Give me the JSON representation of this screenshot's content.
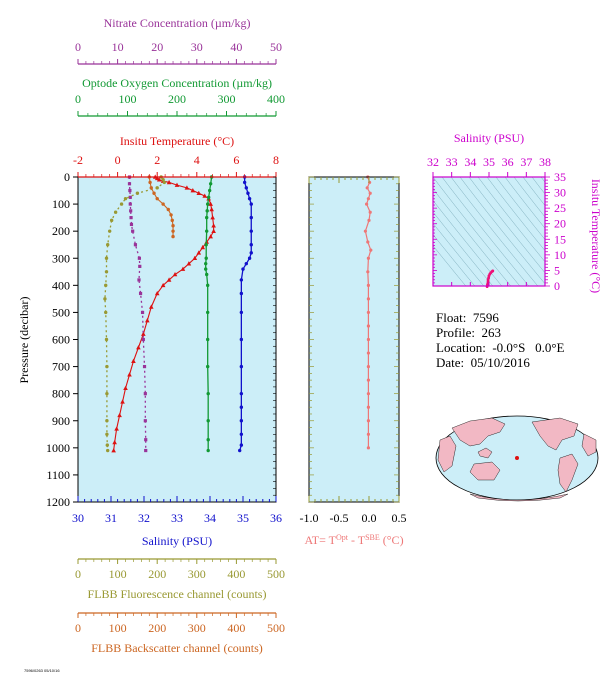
{
  "colors": {
    "nitrate": "#993399",
    "oxygen": "#119933",
    "temperature": "#dd1111",
    "salinity": "#1111cc",
    "fluorescence": "#999933",
    "backscatter": "#cc6622",
    "delta_t": "#ee7777",
    "magenta": "#cc00cc",
    "plot_bg": "#cceef8"
  },
  "info": {
    "float": "Float:  7596",
    "profile": "Profile:  263",
    "location": "Location:  -0.0°S   0.0°E",
    "date": "Date:  05/10/2016"
  },
  "footer_code": "7596/0263 05/10/16",
  "chart_data": [
    {
      "type": "line",
      "ylabel": "Pressure (decibar)",
      "ylim": [
        1200,
        0
      ],
      "yticks": [
        "0",
        "100",
        "200",
        "300",
        "400",
        "500",
        "600",
        "700",
        "800",
        "900",
        "1000",
        "1100",
        "1200"
      ],
      "axes": {
        "nitrate": {
          "label": "Nitrate Concentration (µm/kg)",
          "range": [
            0,
            50
          ],
          "ticks": [
            "0",
            "10",
            "20",
            "30",
            "40",
            "50"
          ]
        },
        "oxygen": {
          "label": "Optode Oxygen Concentration (µm/kg)",
          "range": [
            0,
            400
          ],
          "ticks": [
            "0",
            "100",
            "200",
            "300",
            "400"
          ]
        },
        "temperature": {
          "label": "Insitu Temperature (°C)",
          "range": [
            -2,
            8
          ],
          "ticks": [
            "-2",
            "0",
            "2",
            "4",
            "6",
            "8"
          ]
        },
        "salinity": {
          "label": "Salinity (PSU)",
          "range": [
            30,
            36
          ],
          "ticks": [
            "30",
            "31",
            "32",
            "33",
            "34",
            "35",
            "36"
          ]
        },
        "fluorescence": {
          "label": "FLBB Fluorescence channel (counts)",
          "range": [
            0,
            500
          ],
          "ticks": [
            "0",
            "100",
            "200",
            "300",
            "400",
            "500"
          ]
        },
        "backscatter": {
          "label": "FLBB Backscatter channel (counts)",
          "range": [
            0,
            500
          ],
          "ticks": [
            "0",
            "100",
            "200",
            "300",
            "400",
            "500"
          ]
        }
      },
      "series": [
        {
          "name": "Insitu Temperature",
          "axis": "temperature",
          "x": [
            1.9,
            2.0,
            2.1,
            2.3,
            2.6,
            3.0,
            3.5,
            3.8,
            4.1,
            4.4,
            4.6,
            4.7,
            4.75,
            4.8,
            4.85,
            4.85,
            4.7,
            4.5,
            4.3,
            4.1,
            3.9,
            3.6,
            3.3,
            2.9,
            2.6,
            2.3,
            2.0,
            1.7,
            1.5,
            1.3,
            1.05,
            0.8,
            0.6,
            0.4,
            0.25,
            0.1,
            -0.05,
            -0.15,
            -0.2
          ],
          "y": [
            0,
            5,
            10,
            15,
            20,
            30,
            40,
            50,
            60,
            70,
            80,
            100,
            120,
            150,
            180,
            200,
            220,
            240,
            260,
            280,
            300,
            320,
            340,
            360,
            380,
            400,
            430,
            480,
            530,
            580,
            630,
            680,
            730,
            780,
            830,
            880,
            930,
            980,
            1010
          ]
        },
        {
          "name": "Salinity",
          "axis": "salinity",
          "x": [
            35.05,
            35.05,
            35.1,
            35.15,
            35.2,
            35.25,
            35.25,
            35.25,
            35.25,
            35.25,
            35.2,
            35.1,
            35.0,
            34.95,
            34.95,
            34.95,
            34.95,
            34.95,
            34.95,
            34.95,
            34.95,
            34.95,
            34.95,
            34.9
          ],
          "y": [
            0,
            20,
            40,
            60,
            80,
            100,
            150,
            200,
            250,
            280,
            300,
            320,
            340,
            380,
            430,
            500,
            600,
            700,
            800,
            850,
            900,
            950,
            990,
            1010
          ]
        },
        {
          "name": "Nitrate",
          "axis": "nitrate",
          "x": [
            13.0,
            13.0,
            13.1,
            13.2,
            13.2,
            13.3,
            13.4,
            13.5,
            13.8,
            14.5,
            15.5,
            15.6,
            15.4,
            15.8,
            16.3,
            16.5,
            16.8,
            17.0,
            17.0,
            17.1,
            17.1
          ],
          "y": [
            0,
            25,
            50,
            75,
            100,
            125,
            150,
            175,
            200,
            250,
            300,
            330,
            380,
            430,
            500,
            600,
            700,
            800,
            900,
            970,
            1010
          ]
        },
        {
          "name": "Oxygen",
          "axis": "oxygen",
          "x": [
            270,
            268,
            266,
            264,
            262,
            261,
            260,
            260,
            259,
            259,
            258,
            258,
            260,
            262,
            262,
            262,
            262,
            263,
            263,
            263,
            263
          ],
          "y": [
            0,
            25,
            50,
            75,
            100,
            125,
            150,
            200,
            250,
            300,
            320,
            340,
            360,
            400,
            500,
            600,
            700,
            800,
            900,
            970,
            1010
          ]
        },
        {
          "name": "FLBB Fluorescence",
          "axis": "fluorescence",
          "x": [
            210,
            215,
            218,
            200,
            150,
            120,
            110,
            95,
            85,
            80,
            75,
            72,
            72,
            70,
            68,
            70,
            72,
            73,
            73,
            73,
            73,
            74,
            75
          ],
          "y": [
            0,
            10,
            20,
            40,
            60,
            80,
            100,
            130,
            160,
            200,
            250,
            300,
            350,
            400,
            450,
            500,
            600,
            700,
            800,
            900,
            950,
            990,
            1010
          ]
        },
        {
          "name": "FLBB Backscatter",
          "axis": "backscatter",
          "x": [
            180,
            182,
            185,
            192,
            200,
            215,
            228,
            235,
            238,
            240,
            240,
            240
          ],
          "y": [
            0,
            20,
            40,
            60,
            80,
            100,
            120,
            140,
            160,
            180,
            200,
            220
          ]
        }
      ]
    },
    {
      "type": "line",
      "xlabel": "AT= T^Opt - T^SBE (°C)",
      "xlim": [
        -1.0,
        0.5
      ],
      "xticks": [
        "-1.0",
        "-0.5",
        "0.0",
        "0.5"
      ],
      "ylim": [
        1200,
        0
      ],
      "series": [
        {
          "name": "AT",
          "x": [
            -0.02,
            0.01,
            -0.03,
            0.02,
            -0.01,
            -0.04,
            0.02,
            0.0,
            -0.06,
            -0.02,
            0.03,
            -0.01,
            -0.02,
            -0.01,
            -0.01,
            -0.01,
            -0.01,
            -0.01,
            -0.01,
            -0.01,
            -0.01,
            -0.01,
            -0.01,
            -0.01,
            -0.01,
            -0.01
          ],
          "y": [
            0,
            20,
            40,
            60,
            80,
            100,
            130,
            160,
            200,
            240,
            270,
            300,
            350,
            400,
            450,
            500,
            550,
            600,
            650,
            700,
            750,
            800,
            850,
            900,
            950,
            1000
          ]
        }
      ]
    },
    {
      "type": "scatter",
      "xlabel": "Salinity (PSU)",
      "ylabel": "Insitu Temperature (°C)",
      "xlim": [
        32,
        38
      ],
      "ylim": [
        0,
        35
      ],
      "xticks": [
        "32",
        "33",
        "34",
        "35",
        "36",
        "37",
        "38"
      ],
      "yticks": [
        "0",
        "5",
        "10",
        "15",
        "20",
        "25",
        "30",
        "35"
      ],
      "series": [
        {
          "name": "T-S",
          "x": [
            34.9,
            34.92,
            34.95,
            34.95,
            34.98,
            35.0,
            35.05,
            35.1,
            35.15,
            35.2,
            35.2
          ],
          "y": [
            -0.2,
            0.5,
            1.3,
            2.0,
            2.6,
            3.3,
            3.9,
            4.3,
            4.6,
            4.8,
            4.85
          ]
        }
      ]
    }
  ]
}
